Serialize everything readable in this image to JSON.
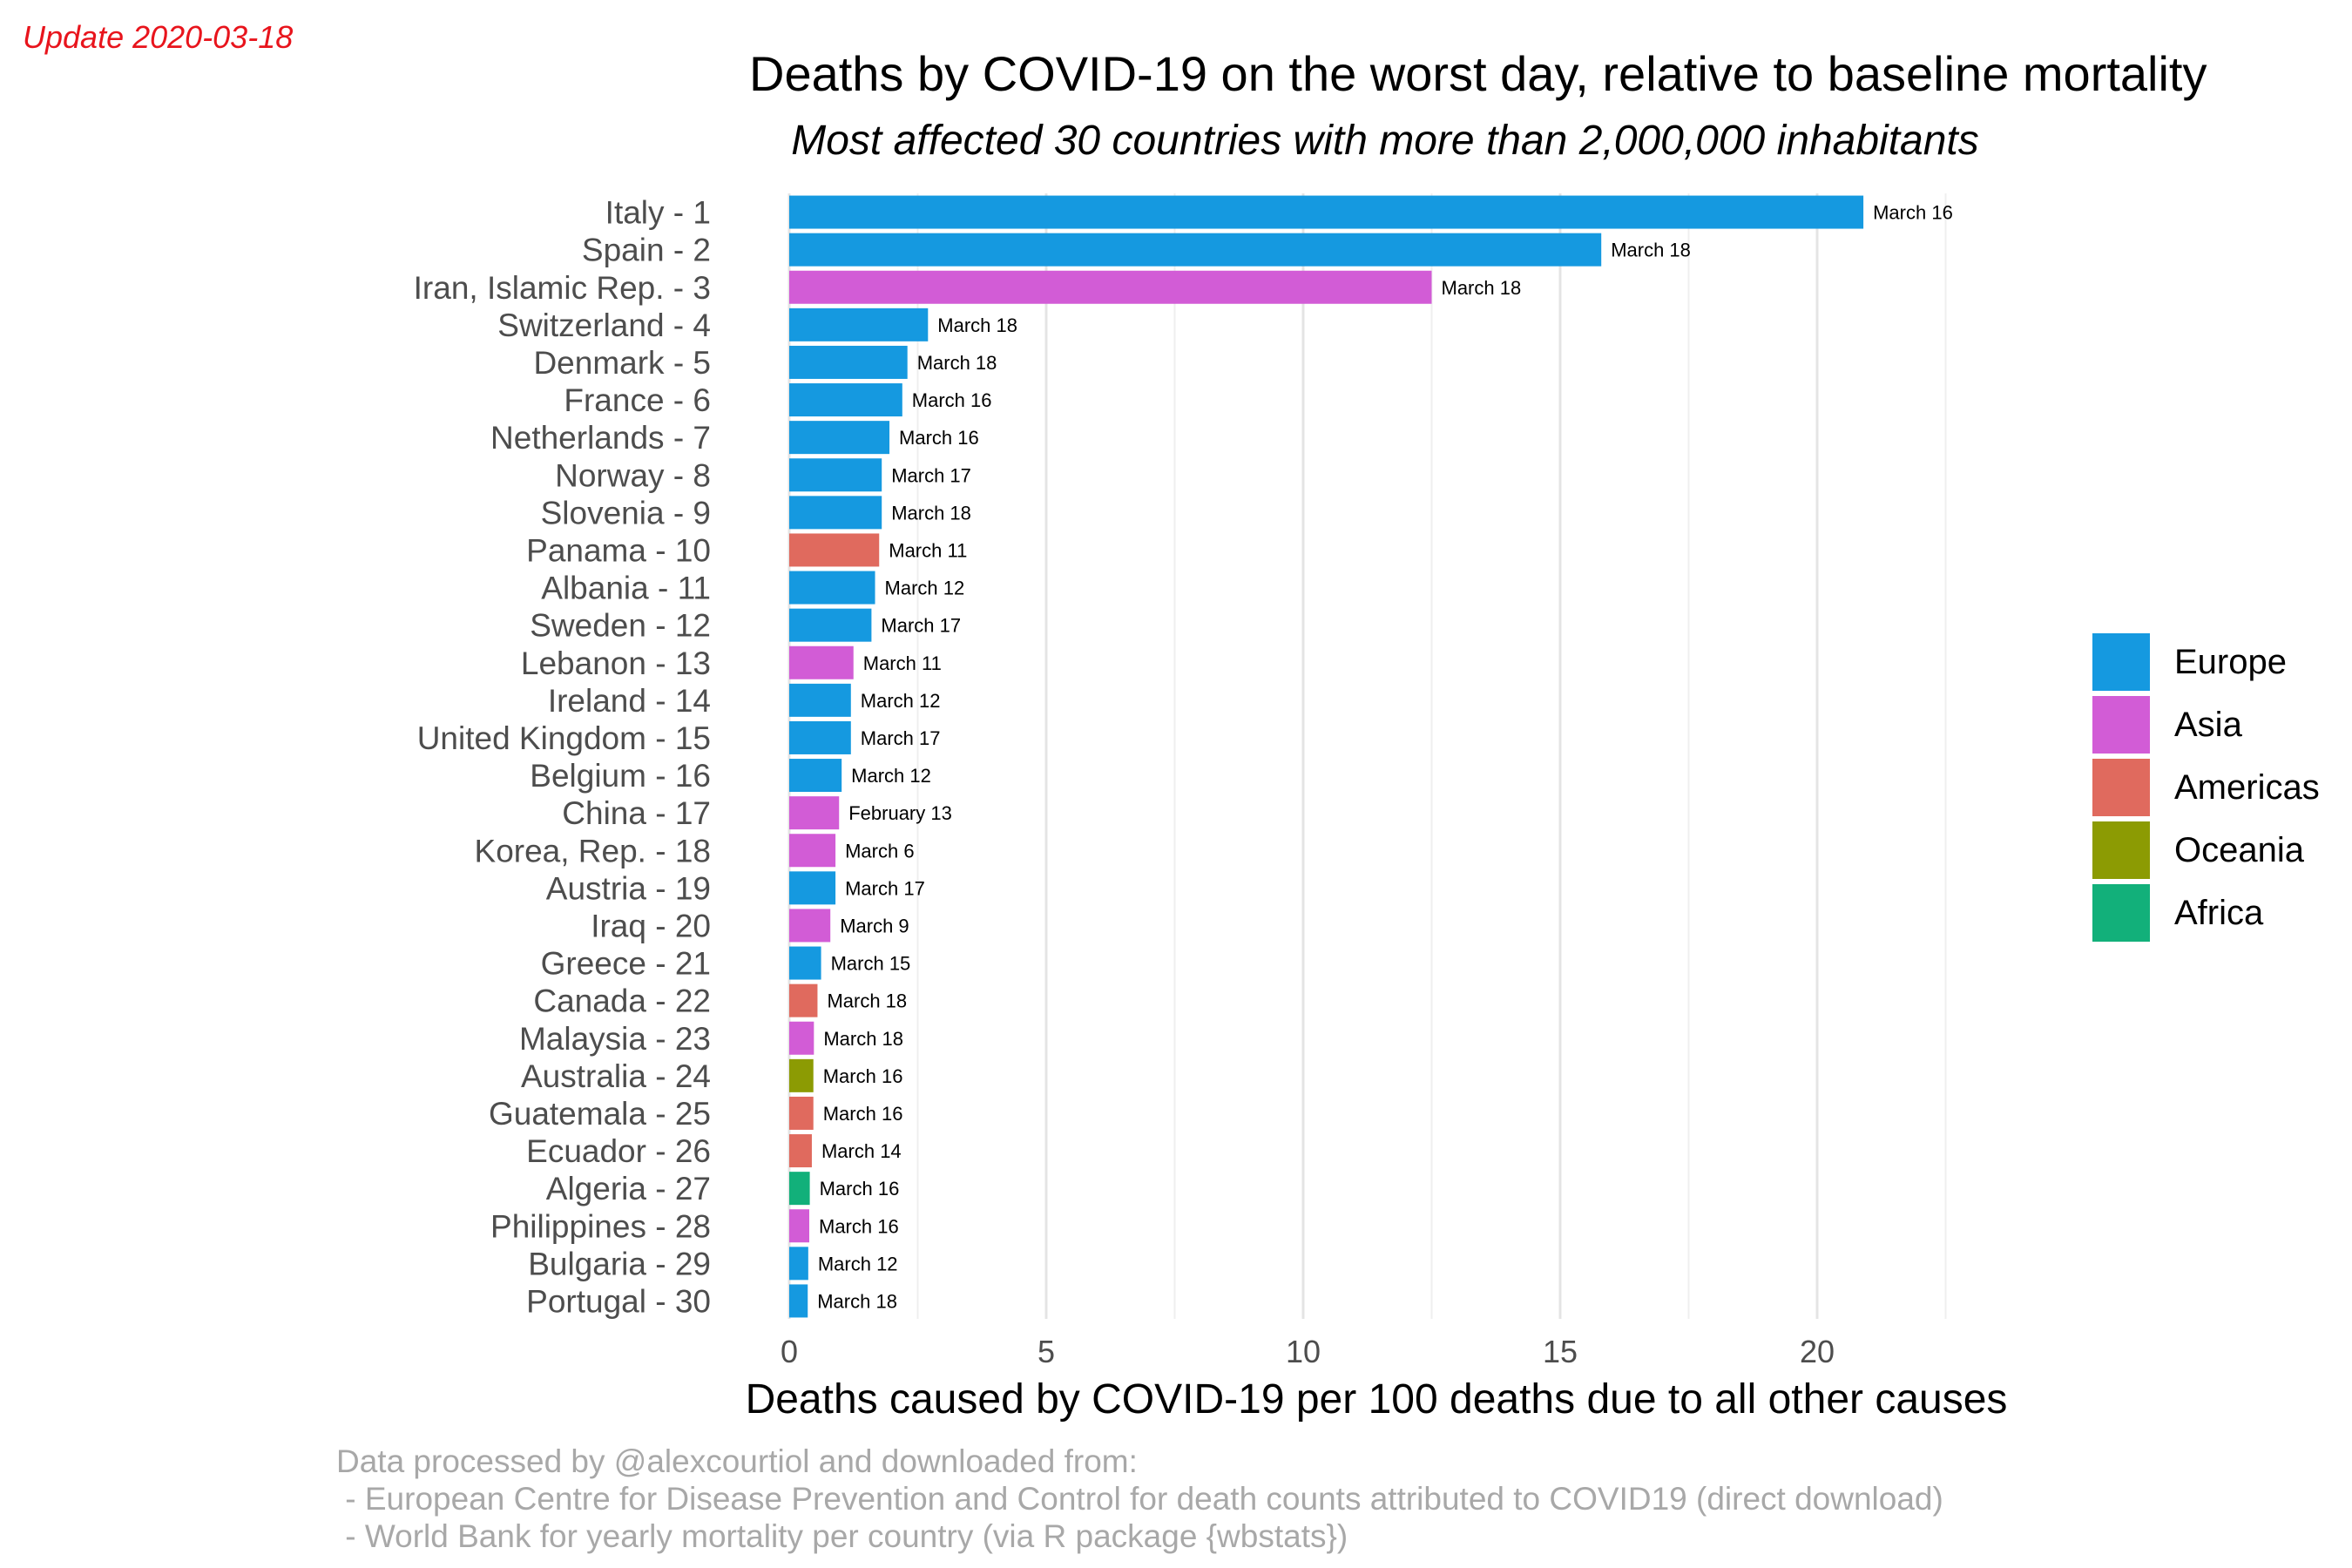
{
  "update_note": "Update 2020-03-18",
  "chart_data": {
    "type": "bar",
    "orientation": "horizontal",
    "title": "Deaths by COVID-19 on the worst day, relative to baseline mortality",
    "subtitle": "Most affected 30 countries with more than 2,000,000 inhabitants",
    "xlabel": "Deaths caused by COVID-19 per 100 deaths due to all other causes",
    "ylabel": "",
    "xlim": [
      0,
      22.5
    ],
    "x_ticks": [
      "0",
      "5",
      "10",
      "15",
      "20"
    ],
    "grid": true,
    "legend_position": "right",
    "legend": [
      {
        "name": "Europe",
        "color": "#1599e0"
      },
      {
        "name": "Asia",
        "color": "#d25cd6"
      },
      {
        "name": "Americas",
        "color": "#e06a5e"
      },
      {
        "name": "Oceania",
        "color": "#8c9b03"
      },
      {
        "name": "Africa",
        "color": "#12b07a"
      }
    ],
    "bars": [
      {
        "label": "Italy - 1",
        "value": 20.9,
        "date": "March 16",
        "region": "Europe"
      },
      {
        "label": "Spain - 2",
        "value": 15.8,
        "date": "March 18",
        "region": "Europe"
      },
      {
        "label": "Iran, Islamic Rep. - 3",
        "value": 12.5,
        "date": "March 18",
        "region": "Asia"
      },
      {
        "label": "Switzerland - 4",
        "value": 2.7,
        "date": "March 18",
        "region": "Europe"
      },
      {
        "label": "Denmark - 5",
        "value": 2.3,
        "date": "March 18",
        "region": "Europe"
      },
      {
        "label": "France - 6",
        "value": 2.2,
        "date": "March 16",
        "region": "Europe"
      },
      {
        "label": "Netherlands - 7",
        "value": 1.95,
        "date": "March 16",
        "region": "Europe"
      },
      {
        "label": "Norway - 8",
        "value": 1.8,
        "date": "March 17",
        "region": "Europe"
      },
      {
        "label": "Slovenia - 9",
        "value": 1.8,
        "date": "March 18",
        "region": "Europe"
      },
      {
        "label": "Panama - 10",
        "value": 1.75,
        "date": "March 11",
        "region": "Americas"
      },
      {
        "label": "Albania - 11",
        "value": 1.67,
        "date": "March 12",
        "region": "Europe"
      },
      {
        "label": "Sweden - 12",
        "value": 1.6,
        "date": "March 17",
        "region": "Europe"
      },
      {
        "label": "Lebanon - 13",
        "value": 1.25,
        "date": "March 11",
        "region": "Asia"
      },
      {
        "label": "Ireland - 14",
        "value": 1.2,
        "date": "March 12",
        "region": "Europe"
      },
      {
        "label": "United Kingdom - 15",
        "value": 1.2,
        "date": "March 17",
        "region": "Europe"
      },
      {
        "label": "Belgium - 16",
        "value": 1.02,
        "date": "March 12",
        "region": "Europe"
      },
      {
        "label": "China - 17",
        "value": 0.97,
        "date": "February 13",
        "region": "Asia"
      },
      {
        "label": "Korea, Rep. - 18",
        "value": 0.9,
        "date": "March 6",
        "region": "Asia"
      },
      {
        "label": "Austria - 19",
        "value": 0.9,
        "date": "March 17",
        "region": "Europe"
      },
      {
        "label": "Iraq - 20",
        "value": 0.8,
        "date": "March 9",
        "region": "Asia"
      },
      {
        "label": "Greece - 21",
        "value": 0.62,
        "date": "March 15",
        "region": "Europe"
      },
      {
        "label": "Canada - 22",
        "value": 0.55,
        "date": "March 18",
        "region": "Americas"
      },
      {
        "label": "Malaysia - 23",
        "value": 0.48,
        "date": "March 18",
        "region": "Asia"
      },
      {
        "label": "Australia - 24",
        "value": 0.47,
        "date": "March 16",
        "region": "Oceania"
      },
      {
        "label": "Guatemala - 25",
        "value": 0.47,
        "date": "March 16",
        "region": "Americas"
      },
      {
        "label": "Ecuador - 26",
        "value": 0.44,
        "date": "March 14",
        "region": "Americas"
      },
      {
        "label": "Algeria - 27",
        "value": 0.4,
        "date": "March 16",
        "region": "Africa"
      },
      {
        "label": "Philippines - 28",
        "value": 0.39,
        "date": "March 16",
        "region": "Asia"
      },
      {
        "label": "Bulgaria - 29",
        "value": 0.37,
        "date": "March 12",
        "region": "Europe"
      },
      {
        "label": "Portugal - 30",
        "value": 0.36,
        "date": "March 18",
        "region": "Europe"
      }
    ]
  },
  "caption": {
    "lines": [
      "Data processed by @alexcourtiol and downloaded from:",
      " - European Centre for Disease Prevention and Control for death counts attributed to COVID19 (direct download)",
      " - World Bank for yearly mortality per country (via R package {wbstats})"
    ]
  }
}
